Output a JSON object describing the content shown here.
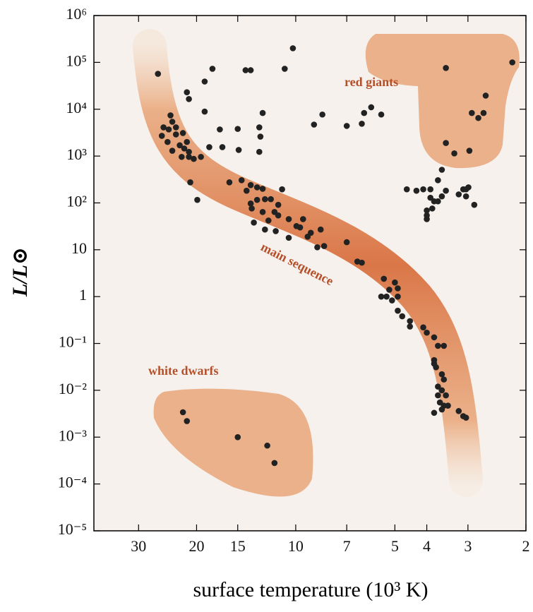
{
  "chart_data": {
    "type": "scatter",
    "x_label": "surface temperature  (10³ K)",
    "y_label": "L/L⊙",
    "xscale": "log",
    "yscale": "log",
    "color": "#222222",
    "xlim": [
      41,
      2
    ],
    "ylim": [
      1e-05,
      1000000
    ],
    "xticks": [
      30,
      20,
      15,
      10,
      7,
      5,
      4,
      3,
      2
    ],
    "yticks": [
      {
        "value": 1000000,
        "label": "10⁶"
      },
      {
        "value": 100000,
        "label": "10⁵"
      },
      {
        "value": 10000,
        "label": "10⁴"
      },
      {
        "value": 1000,
        "label": "10³"
      },
      {
        "value": 100,
        "label": "10²"
      },
      10,
      1,
      {
        "value": 0.1,
        "label": "10⁻¹"
      },
      {
        "value": 0.01,
        "label": "10⁻²"
      },
      {
        "value": 0.001,
        "label": "10⁻³"
      },
      {
        "value": 0.0001,
        "label": "10⁻⁴"
      },
      {
        "value": 1e-05,
        "label": "10⁻⁵"
      }
    ],
    "annotations": [
      {
        "text": "red giants"
      },
      {
        "text": "main sequence"
      },
      {
        "text": "white dwarfs"
      }
    ],
    "x": [
      26.2,
      24.0,
      23.7,
      25.2,
      24.3,
      23.1,
      25.5,
      23.1,
      22.0,
      24.5,
      22.5,
      21.4,
      23.7,
      21.8,
      21.1,
      22.2,
      21.1,
      20.4,
      19.4,
      20.9,
      18.3,
      16.7,
      19.9,
      15.9,
      14.6,
      13.7,
      14.1,
      13.1,
      12.6,
      13.7,
      13.1,
      12.4,
      11.9,
      11.3,
      13.6,
      12.6,
      11.6,
      11.3,
      12.1,
      13.4,
      12.4,
      11.5,
      10.5,
      9.95,
      9.5,
      9.7,
      9.0,
      8.4,
      10.5,
      9.2,
      8.6,
      8.2,
      7.0,
      6.5,
      6.3,
      5.4,
      5.0,
      5.2,
      4.9,
      5.5,
      5.3,
      5.1,
      4.9,
      4.9,
      4.75,
      4.5,
      4.5,
      4.1,
      4.0,
      3.8,
      3.7,
      3.55,
      3.8,
      3.8,
      3.75,
      3.6,
      3.55,
      3.7,
      3.6,
      3.5,
      3.65,
      3.55,
      3.8,
      3.6,
      3.45,
      3.2,
      3.1,
      3.04,
      3.7,
      21.4,
      21.1,
      17.9,
      18.9,
      18.9,
      17.0,
      15.0,
      14.2,
      13.7,
      12.9,
      12.8,
      12.6,
      10.8,
      10.2,
      14.9,
      12.9,
      11.0,
      8.3,
      8.8,
      5.9,
      6.2,
      6.3,
      7.0,
      5.5,
      3.5,
      2.2,
      2.65,
      2.92,
      2.79,
      2.69,
      3.5,
      3.3,
      2.97,
      2.87,
      4.6,
      4.3,
      4.1,
      3.9,
      3.7,
      3.6,
      3.9,
      3.8,
      3.7,
      3.5,
      3.85,
      4.0,
      4.0,
      4.0,
      3.6,
      3.1,
      3.2,
      3.04,
      2.99,
      3.04,
      22.0,
      21.4,
      15.0,
      12.2,
      11.6
    ],
    "values": [
      57000,
      7400,
      5400,
      4100,
      3700,
      4100,
      2700,
      2900,
      3100,
      2000,
      1700,
      2000,
      1300,
      1450,
      1230,
      960,
      960,
      870,
      960,
      275,
      1550,
      1550,
      116,
      275,
      305,
      240,
      182,
      215,
      200,
      97,
      116,
      120,
      120,
      91,
      76,
      64,
      64,
      54,
      42,
      38,
      27,
      25,
      45,
      32,
      45,
      30,
      23,
      27,
      18,
      19,
      11.3,
      12,
      14.5,
      5.6,
      5.3,
      2.4,
      2.0,
      1.4,
      1.5,
      1.0,
      1.0,
      0.83,
      1.0,
      0.5,
      0.38,
      0.3,
      0.23,
      0.22,
      0.17,
      0.135,
      0.089,
      0.089,
      0.044,
      0.037,
      0.031,
      0.022,
      0.017,
      0.012,
      0.01,
      0.0078,
      0.0055,
      0.0047,
      0.0033,
      0.0039,
      0.0047,
      0.0036,
      0.0028,
      0.0026,
      0.0078,
      23000,
      16500,
      73000,
      39000,
      8900,
      3700,
      3800,
      68000,
      68000,
      4100,
      2600,
      8300,
      73000,
      200000,
      1350,
      1230,
      195,
      7700,
      4700,
      11000,
      8300,
      4900,
      4400,
      7700,
      76000,
      100000,
      19500,
      8300,
      6500,
      8300,
      1900,
      1140,
      1300,
      91,
      195,
      182,
      195,
      195,
      305,
      510,
      129,
      108,
      108,
      182,
      76,
      69,
      54,
      45,
      138,
      195,
      152,
      195,
      215,
      138,
      0.0034,
      0.0022,
      0.001,
      0.00066,
      0.00028
    ]
  }
}
